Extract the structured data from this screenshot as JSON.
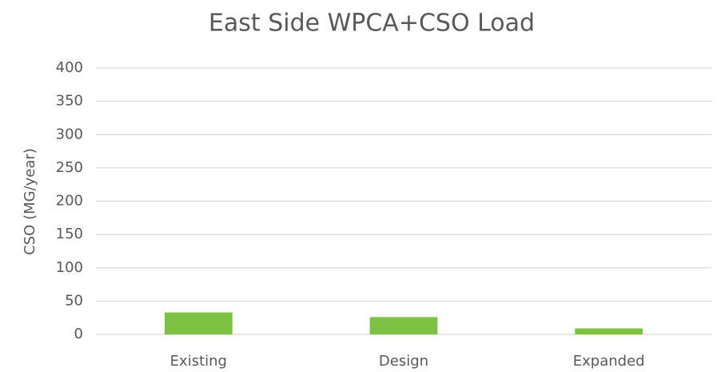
{
  "chart_data": {
    "type": "bar",
    "title": "East Side WPCA+CSO Load",
    "y_label": "CSO (MG/year)",
    "categories": [
      "Existing",
      "Design",
      "Expanded"
    ],
    "values": [
      33,
      26,
      9
    ],
    "color": "#7dc242",
    "ylim": [
      0,
      400
    ],
    "yticks": [
      0,
      50,
      100,
      150,
      200,
      250,
      300,
      350,
      400
    ],
    "grid": true
  }
}
